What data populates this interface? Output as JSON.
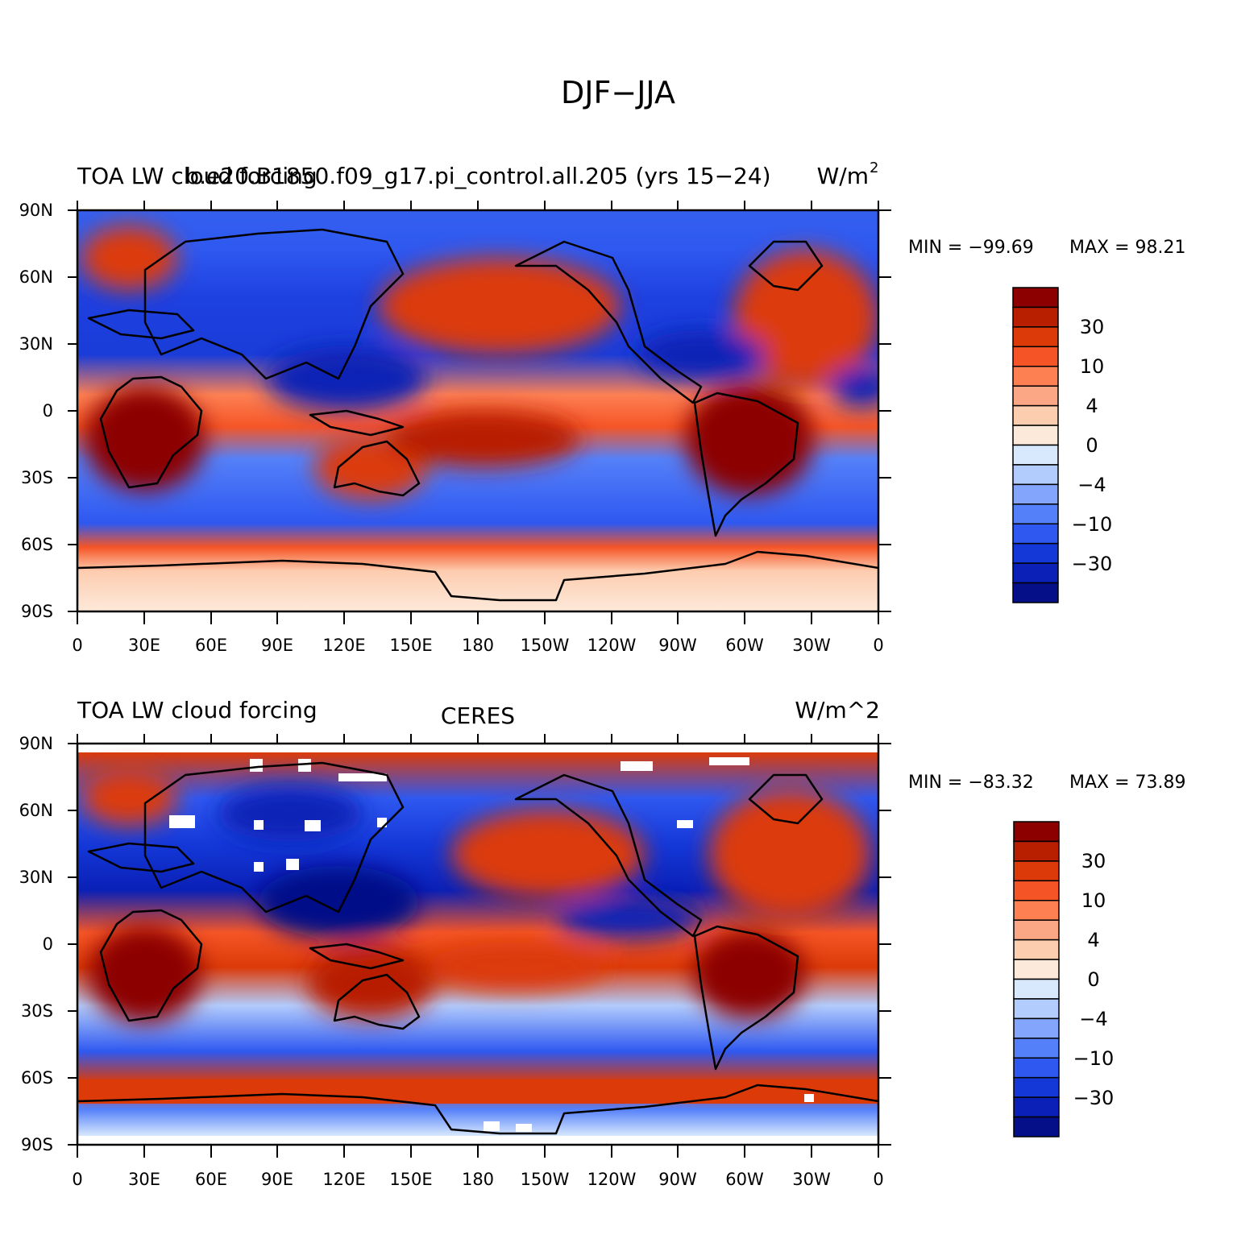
{
  "figure": {
    "title": "DJF−JJA"
  },
  "lat_labels": [
    "90N",
    "60N",
    "30N",
    "0",
    "30S",
    "60S",
    "90S"
  ],
  "lon_labels": [
    "0",
    "30E",
    "60E",
    "90E",
    "120E",
    "150E",
    "180",
    "150W",
    "120W",
    "90W",
    "60W",
    "30W",
    "0"
  ],
  "colorbar_labels": [
    "30",
    "10",
    "4",
    "0",
    "−4",
    "−10",
    "−30"
  ],
  "colorbar_colors": [
    "#8c0000",
    "#b81e00",
    "#dc3a08",
    "#f55526",
    "#fd8053",
    "#fba785",
    "#fdcdb0",
    "#fde9da",
    "#d8e8fd",
    "#b2ccfd",
    "#83a5fb",
    "#5480f9",
    "#2e58f0",
    "#1438d8",
    "#0a20b6",
    "#050f88"
  ],
  "panels": [
    {
      "left_title": "TOA LW cloud forcing",
      "center_title": "b.e20.B1850.f09_g17.pi_control.all.205 (yrs 15−24)",
      "units": "W/m",
      "units_sup": "2",
      "min_text": "MIN = −99.69",
      "max_text": "MAX =   98.21"
    },
    {
      "left_title": "TOA LW cloud forcing",
      "center_title": "CERES",
      "units": "W/m^2",
      "units_sup": "",
      "min_text": "MIN = −83.32",
      "max_text": "MAX =   73.89"
    }
  ]
}
